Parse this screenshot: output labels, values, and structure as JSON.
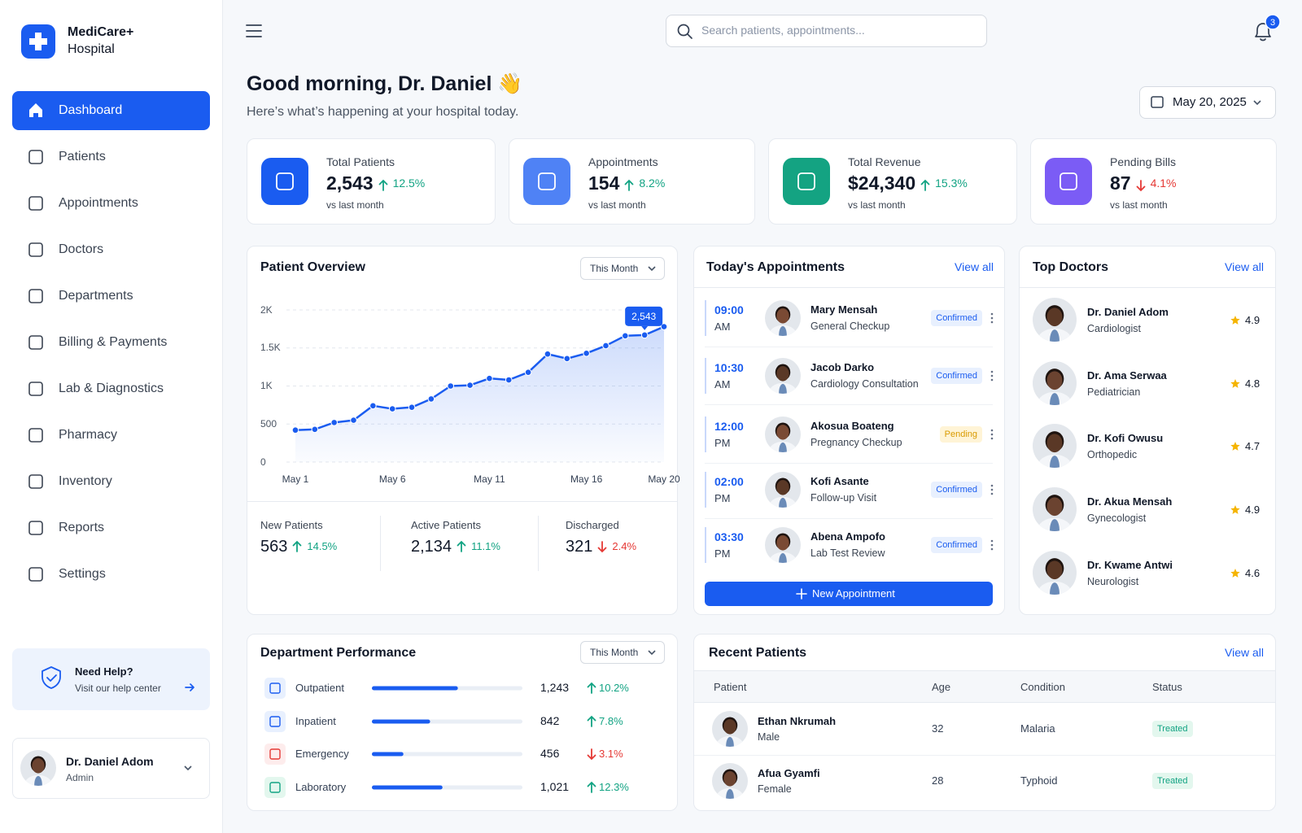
{
  "brand": {
    "name": "MediCare+",
    "sub": "Hospital"
  },
  "nav": [
    "Dashboard",
    "Patients",
    "Appointments",
    "Doctors",
    "Departments",
    "Billing & Payments",
    "Lab & Diagnostics",
    "Pharmacy",
    "Inventory",
    "Reports",
    "Settings"
  ],
  "help": {
    "title": "Need Help?",
    "text": "Visit our help center"
  },
  "user": {
    "name": "Dr. Daniel Adom",
    "role": "Admin"
  },
  "topbar": {
    "search_placeholder": "Search patients, appointments...",
    "notifications": 3
  },
  "greeting": {
    "title": "Good morning, Dr. Daniel 👋",
    "subtitle": "Here’s what’s happening at your hospital today.",
    "date": "May 20, 2025"
  },
  "stats": [
    {
      "label": "Total Patients",
      "value": "2,543",
      "change": "12.5%",
      "trend": "up",
      "note": "vs last month",
      "color": "#1a5cf0"
    },
    {
      "label": "Appointments",
      "value": "154",
      "change": "8.2%",
      "trend": "up",
      "note": "vs last month",
      "color": "#4f82f5"
    },
    {
      "label": "Total Revenue",
      "value": "$24,340",
      "change": "15.3%",
      "trend": "up",
      "note": "vs last month",
      "color": "#14a382"
    },
    {
      "label": "Pending Bills",
      "value": "87",
      "change": "4.1%",
      "trend": "down",
      "note": "vs last month",
      "color": "#7b5cf5"
    }
  ],
  "chart_data": {
    "type": "line",
    "title": "Patient Overview",
    "filter": "This Month",
    "categories": [
      "May 1",
      null,
      null,
      null,
      null,
      "May 6",
      null,
      null,
      null,
      null,
      "May 11",
      null,
      null,
      null,
      null,
      "May 16",
      null,
      null,
      null,
      "May 20"
    ],
    "values": [
      420,
      430,
      520,
      550,
      740,
      700,
      720,
      830,
      1000,
      1010,
      1100,
      1080,
      1180,
      1420,
      1360,
      1430,
      1530,
      1660,
      1670,
      1780
    ],
    "color": "#1a5cf0",
    "ylim": [
      0,
      2000
    ],
    "yticks": [
      0,
      500,
      {
        "value": 1000,
        "label": "1K"
      },
      {
        "value": 1500,
        "label": "1.5K"
      },
      {
        "value": 2000,
        "label": "2K"
      }
    ],
    "grid": true,
    "annotation": "2,543"
  },
  "patient_summary": [
    {
      "label": "New Patients",
      "value": "563",
      "change": "14.5%",
      "trend": "up"
    },
    {
      "label": "Active Patients",
      "value": "2,134",
      "change": "11.1%",
      "trend": "up"
    },
    {
      "label": "Discharged",
      "value": "321",
      "change": "2.4%",
      "trend": "down"
    }
  ],
  "appointments": {
    "title": "Today's Appointments",
    "link": "View all",
    "button": "New Appointment",
    "items": [
      {
        "time": "09:00",
        "period": "AM",
        "name": "Mary Mensah",
        "type": "General Checkup",
        "status": "Confirmed"
      },
      {
        "time": "10:30",
        "period": "AM",
        "name": "Jacob Darko",
        "type": "Cardiology Consultation",
        "status": "Confirmed"
      },
      {
        "time": "12:00",
        "period": "PM",
        "name": "Akosua Boateng",
        "type": "Pregnancy Checkup",
        "status": "Pending"
      },
      {
        "time": "02:00",
        "period": "PM",
        "name": "Kofi Asante",
        "type": "Follow-up Visit",
        "status": "Confirmed"
      },
      {
        "time": "03:30",
        "period": "PM",
        "name": "Abena Ampofo",
        "type": "Lab Test Review",
        "status": "Confirmed"
      }
    ]
  },
  "top_doctors": {
    "title": "Top Doctors",
    "link": "View all",
    "items": [
      {
        "name": "Dr. Daniel Adom",
        "specialty": "Cardiologist",
        "rating": "4.9"
      },
      {
        "name": "Dr. Ama Serwaa",
        "specialty": "Pediatrician",
        "rating": "4.8"
      },
      {
        "name": "Dr. Kofi Owusu",
        "specialty": "Orthopedic",
        "rating": "4.7"
      },
      {
        "name": "Dr. Akua Mensah",
        "specialty": "Gynecologist",
        "rating": "4.9"
      },
      {
        "name": "Dr. Kwame Antwi",
        "specialty": "Neurologist",
        "rating": "4.6"
      }
    ]
  },
  "departments": {
    "title": "Department Performance",
    "filter": "This Month",
    "items": [
      {
        "name": "Outpatient",
        "value": 1243,
        "value_label": "1,243",
        "change": "10.2%",
        "trend": "up"
      },
      {
        "name": "Inpatient",
        "value": 842,
        "value_label": "842",
        "change": "7.8%",
        "trend": "up"
      },
      {
        "name": "Emergency",
        "value": 456,
        "value_label": "456",
        "change": "3.1%",
        "trend": "down"
      },
      {
        "name": "Laboratory",
        "value": 1021,
        "value_label": "1,021",
        "change": "12.3%",
        "trend": "up"
      }
    ]
  },
  "recent_patients": {
    "title": "Recent Patients",
    "link": "View all",
    "columns": [
      "Patient",
      "Age",
      "Condition",
      "Status"
    ],
    "rows": [
      {
        "name": "Ethan Nkrumah",
        "gender": "Male",
        "age": "32",
        "condition": "Malaria",
        "status": "Treated"
      },
      {
        "name": "Afua Gyamfi",
        "gender": "Female",
        "age": "28",
        "condition": "Typhoid",
        "status": "Treated"
      }
    ]
  }
}
